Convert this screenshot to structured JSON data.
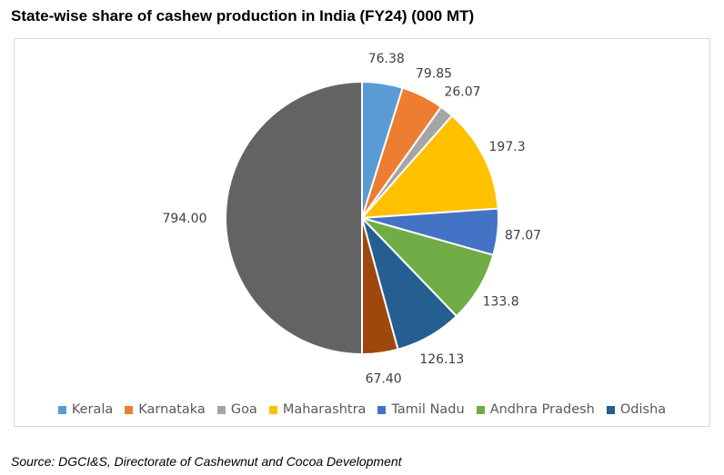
{
  "title": "State-wise share of cashew production in India (FY24) (000 MT)",
  "source": "Source: DGCI&S, Directorate of Cashewnut and Cocoa Development",
  "chart_data": {
    "type": "pie",
    "title": "State-wise share of cashew production in India (FY24) (000 MT)",
    "start": "top, clockwise",
    "legend_position": "bottom",
    "slices": [
      {
        "name": "Kerala",
        "value": 76.38,
        "label": "76.38",
        "color": "#5b9bd5",
        "in_legend": true
      },
      {
        "name": "Karnataka",
        "value": 79.85,
        "label": "79.85",
        "color": "#ed7d31",
        "in_legend": true
      },
      {
        "name": "Goa",
        "value": 26.07,
        "label": "26.07",
        "color": "#a5a5a5",
        "in_legend": true
      },
      {
        "name": "Maharashtra",
        "value": 197.3,
        "label": "197.3",
        "color": "#ffc000",
        "in_legend": true
      },
      {
        "name": "Tamil Nadu",
        "value": 87.07,
        "label": "87.07",
        "color": "#4472c4",
        "in_legend": true
      },
      {
        "name": "Andhra Pradesh",
        "value": 133.8,
        "label": "133.8",
        "color": "#70ad47",
        "in_legend": true
      },
      {
        "name": "Odisha",
        "value": 126.13,
        "label": "126.13",
        "color": "#255e91",
        "in_legend": true
      },
      {
        "name": "",
        "value": 67.4,
        "label": "67.40",
        "color": "#9e480e",
        "in_legend": false
      },
      {
        "name": "",
        "value": 794.0,
        "label": "794.00",
        "color": "#636363",
        "in_legend": false
      }
    ]
  }
}
